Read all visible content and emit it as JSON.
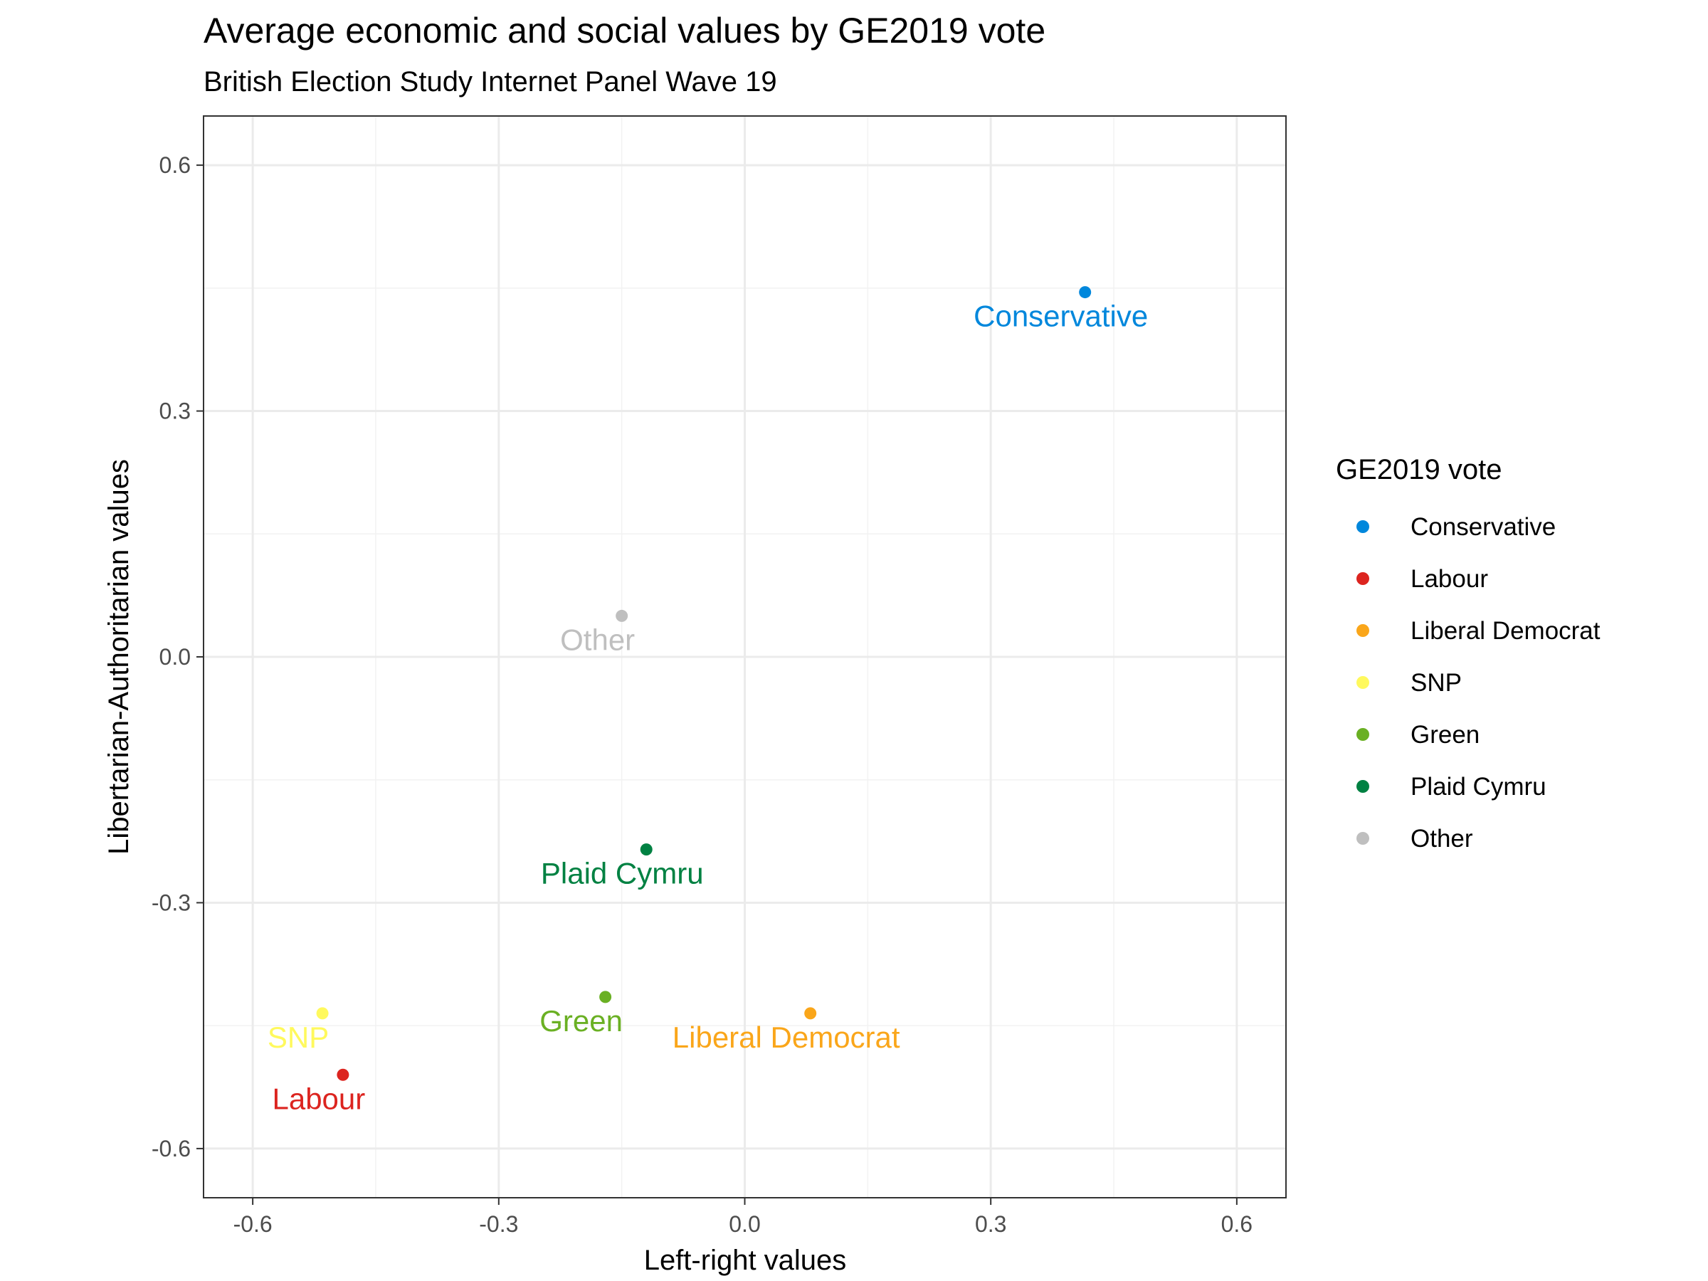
{
  "chart_data": {
    "type": "scatter",
    "title": "Average economic and social values by GE2019 vote",
    "subtitle": "British Election Study Internet Panel Wave 19",
    "xlabel": "Left-right values",
    "ylabel": "Libertarian-Authoritarian values",
    "xlim": [
      -0.66,
      0.66
    ],
    "ylim": [
      -0.66,
      0.66
    ],
    "xticks": [
      "-0.6",
      "-0.3",
      "0.0",
      "0.3",
      "0.6"
    ],
    "yticks": [
      "0.6",
      "0.3",
      "0.0",
      "-0.3",
      "-0.6"
    ],
    "grid": true,
    "legend": {
      "title": "GE2019 vote",
      "position": "right"
    },
    "series": [
      {
        "name": "Conservative",
        "color": "#0087dc",
        "x": 0.415,
        "y": 0.445
      },
      {
        "name": "Labour",
        "color": "#dc241f",
        "x": -0.49,
        "y": -0.51
      },
      {
        "name": "Liberal Democrat",
        "color": "#faa61a",
        "x": 0.08,
        "y": -0.435
      },
      {
        "name": "SNP",
        "color": "#fff95d",
        "x": -0.515,
        "y": -0.435
      },
      {
        "name": "Green",
        "color": "#6ab023",
        "x": -0.17,
        "y": -0.415
      },
      {
        "name": "Plaid Cymru",
        "color": "#008142",
        "x": -0.12,
        "y": -0.235
      },
      {
        "name": "Other",
        "color": "#bfbfbf",
        "x": -0.15,
        "y": 0.05
      }
    ]
  }
}
